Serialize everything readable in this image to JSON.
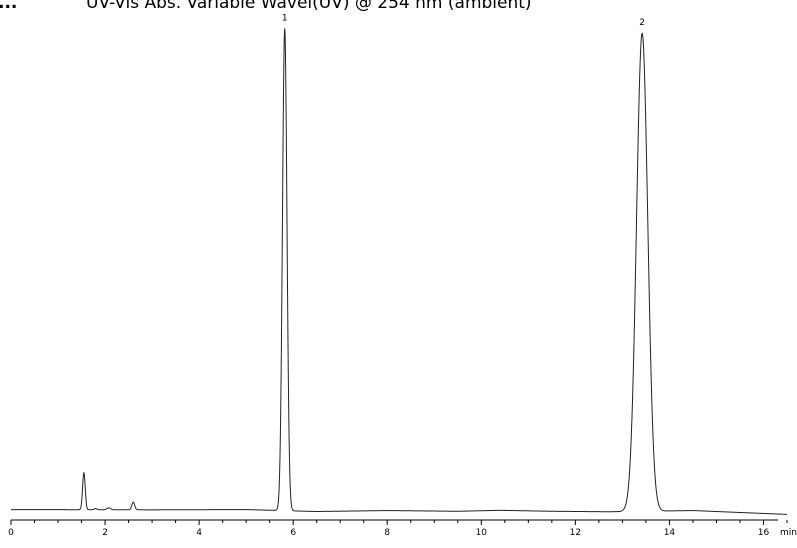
{
  "header": {
    "mark": "...",
    "title": "UV-Vis Abs. Variable Wavel(UV) @ 254 nm (ambient)"
  },
  "chart_data": {
    "type": "line",
    "title": "UV-Vis Abs. Variable Wavel(UV) @ 254 nm (ambient)",
    "xlabel": "min",
    "ylabel": "",
    "xlim": [
      0,
      16.5
    ],
    "ylim": [
      0,
      100
    ],
    "grid": false,
    "x_ticks": [
      {
        "value": 0,
        "label": "0"
      },
      {
        "value": 2,
        "label": "2"
      },
      {
        "value": 4,
        "label": "4"
      },
      {
        "value": 6,
        "label": "6"
      },
      {
        "value": 8,
        "label": "8"
      },
      {
        "value": 10,
        "label": "10"
      },
      {
        "value": 12,
        "label": "12"
      },
      {
        "value": 14,
        "label": "14"
      },
      {
        "value": 16,
        "label": "16"
      }
    ],
    "baseline": [
      {
        "x": 0,
        "y": 0.5
      },
      {
        "x": 3,
        "y": 0.45
      },
      {
        "x": 5,
        "y": 0.5
      },
      {
        "x": 6.5,
        "y": 0.1
      },
      {
        "x": 8,
        "y": 0.3
      },
      {
        "x": 9.5,
        "y": 0.15
      },
      {
        "x": 10.4,
        "y": 0.35
      },
      {
        "x": 11.5,
        "y": 0.15
      },
      {
        "x": 12.7,
        "y": 0.05
      },
      {
        "x": 14.5,
        "y": 0.3
      },
      {
        "x": 16.5,
        "y": -0.5
      }
    ],
    "peaks": [
      {
        "label": "",
        "rt": 1.55,
        "height": 7.7,
        "width": 0.028
      },
      {
        "label": "",
        "rt": 1.8,
        "height": 0.25,
        "width": 0.03
      },
      {
        "label": "",
        "rt": 2.08,
        "height": 0.4,
        "width": 0.04
      },
      {
        "label": "",
        "rt": 2.6,
        "height": 1.6,
        "width": 0.03
      },
      {
        "label": "1",
        "rt": 5.82,
        "height": 100,
        "width": 0.048
      },
      {
        "label": "2",
        "rt": 13.42,
        "height": 99.2,
        "width": 0.12
      }
    ],
    "annotations": [
      "1",
      "2"
    ]
  }
}
